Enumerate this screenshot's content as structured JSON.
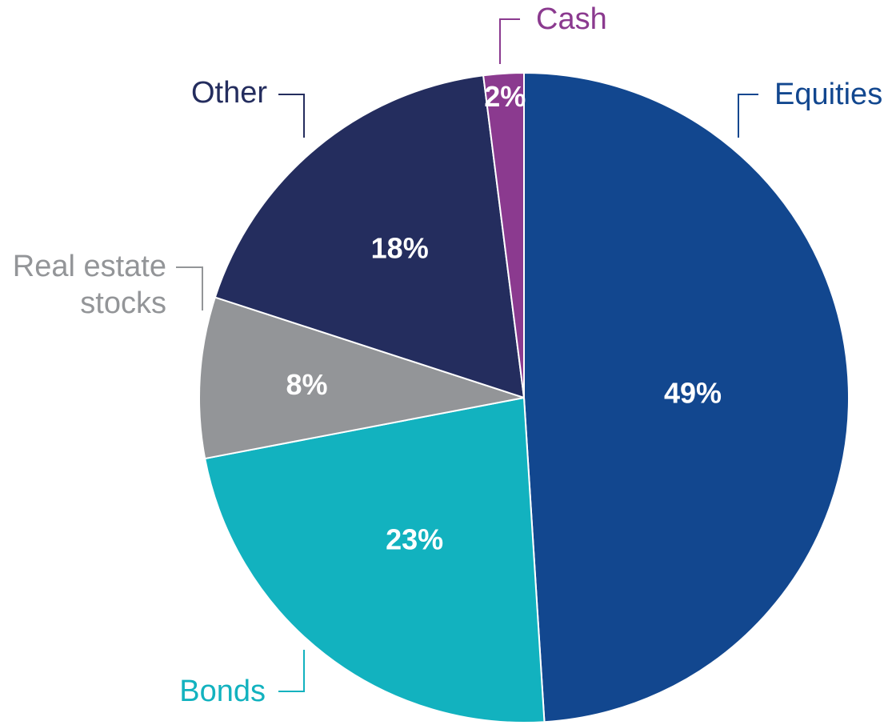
{
  "chart_data": {
    "type": "pie",
    "title": "",
    "slices": [
      {
        "label": "Equities",
        "value": 49,
        "value_label": "49%",
        "color": "#12478F"
      },
      {
        "label": "Bonds",
        "value": 23,
        "value_label": "23%",
        "color": "#12B2BF"
      },
      {
        "label": "Real estate stocks",
        "label_lines": [
          "Real estate",
          "stocks"
        ],
        "value": 8,
        "value_label": "8%",
        "color": "#939598",
        "label_color": "#939598"
      },
      {
        "label": "Other",
        "value": 18,
        "value_label": "18%",
        "color": "#242D5E"
      },
      {
        "label": "Cash",
        "value": 2,
        "value_label": "2%",
        "color": "#8B3A8F"
      }
    ],
    "slice_order": "clockwise from top",
    "legend": "none (callout labels)"
  }
}
